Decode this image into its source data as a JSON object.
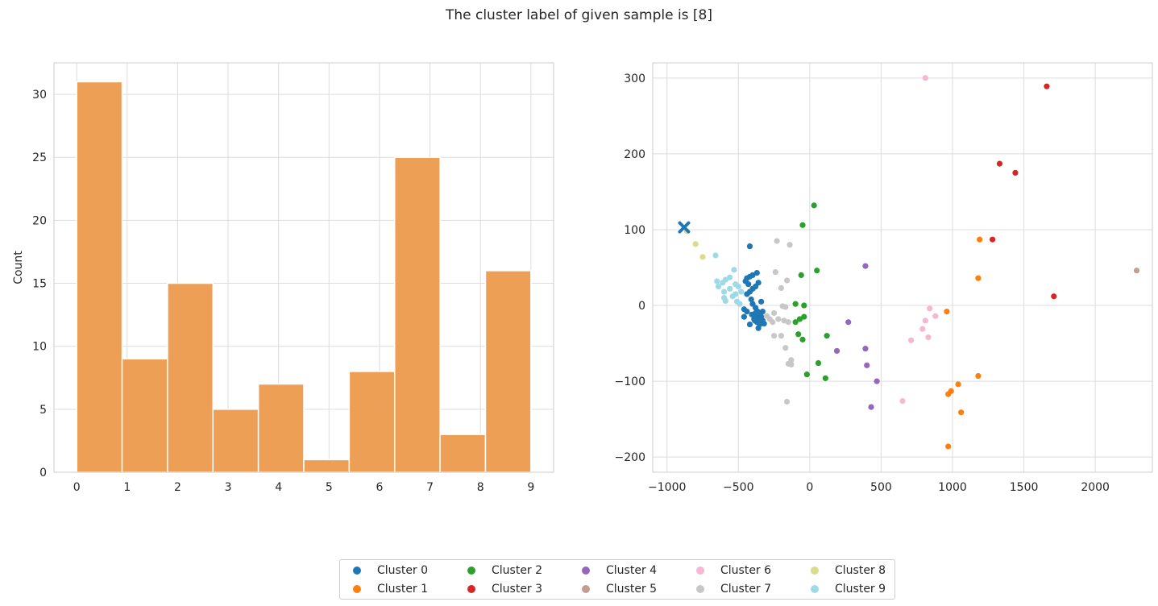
{
  "figure": {
    "title": "The cluster label of given sample is [8]"
  },
  "chart_data": [
    {
      "type": "bar",
      "subtype": "histogram",
      "title": "",
      "xlabel": "",
      "ylabel": "Count",
      "color": "#ed9a4d",
      "bins": [
        {
          "start": 0.0,
          "end": 0.9,
          "count": 31
        },
        {
          "start": 0.9,
          "end": 1.8,
          "count": 9
        },
        {
          "start": 1.8,
          "end": 2.7,
          "count": 15
        },
        {
          "start": 2.7,
          "end": 3.6,
          "count": 5
        },
        {
          "start": 3.6,
          "end": 4.5,
          "count": 7
        },
        {
          "start": 4.5,
          "end": 5.4,
          "count": 1
        },
        {
          "start": 5.4,
          "end": 6.3,
          "count": 8
        },
        {
          "start": 6.3,
          "end": 7.2,
          "count": 25
        },
        {
          "start": 7.2,
          "end": 8.1,
          "count": 3
        },
        {
          "start": 8.1,
          "end": 9.0,
          "count": 16
        }
      ],
      "xlim": [
        -0.45,
        9.45
      ],
      "ylim": [
        0,
        32.5
      ],
      "xticks": [
        0,
        1,
        2,
        3,
        4,
        5,
        6,
        7,
        8,
        9
      ],
      "yticks": [
        0,
        5,
        10,
        15,
        20,
        25,
        30
      ],
      "grid": true
    },
    {
      "type": "scatter",
      "title": "",
      "xlabel": "",
      "ylabel": "",
      "xlim": [
        -1100,
        2400
      ],
      "ylim": [
        -220,
        320
      ],
      "xticks": [
        -1000,
        -500,
        0,
        500,
        1000,
        1500,
        2000
      ],
      "xtick_labels": [
        "−1000",
        "−500",
        "0",
        "500",
        "1000",
        "1500",
        "2000"
      ],
      "yticks": [
        -200,
        -100,
        0,
        100,
        200,
        300
      ],
      "ytick_labels": [
        "−200",
        "−100",
        "0",
        "100",
        "200",
        "300"
      ],
      "grid": true,
      "series": [
        {
          "name": "Cluster 0",
          "color": "#1f77b4",
          "points": [
            [
              -420,
              78
            ],
            [
              -440,
              36
            ],
            [
              -420,
              38
            ],
            [
              -400,
              40
            ],
            [
              -370,
              43
            ],
            [
              -450,
              32
            ],
            [
              -430,
              28
            ],
            [
              -400,
              22
            ],
            [
              -380,
              25
            ],
            [
              -360,
              30
            ],
            [
              -440,
              15
            ],
            [
              -420,
              18
            ],
            [
              -410,
              8
            ],
            [
              -400,
              2
            ],
            [
              -340,
              5
            ],
            [
              -460,
              -5
            ],
            [
              -440,
              -8
            ],
            [
              -380,
              -10
            ],
            [
              -360,
              -12
            ],
            [
              -340,
              -15
            ],
            [
              -390,
              -18
            ],
            [
              -370,
              -22
            ],
            [
              -350,
              -25
            ],
            [
              -330,
              -20
            ],
            [
              -360,
              -30
            ],
            [
              -420,
              -25
            ],
            [
              -320,
              -24
            ],
            [
              -460,
              -15
            ],
            [
              -355,
              -17
            ],
            [
              -375,
              -16
            ],
            [
              -345,
              -13
            ],
            [
              -365,
              -8
            ],
            [
              -330,
              -8
            ],
            [
              -380,
              -3
            ],
            [
              -405,
              -12
            ],
            [
              -385,
              -20
            ]
          ]
        },
        {
          "name": "Cluster 1",
          "color": "#ff7f0e",
          "points": [
            [
              1190,
              87
            ],
            [
              1180,
              36
            ],
            [
              960,
              -8
            ],
            [
              1180,
              -93
            ],
            [
              1040,
              -104
            ],
            [
              990,
              -113
            ],
            [
              970,
              -117
            ],
            [
              1060,
              -141
            ],
            [
              970,
              -186
            ]
          ]
        },
        {
          "name": "Cluster 2",
          "color": "#2ca02c",
          "points": [
            [
              30,
              132
            ],
            [
              -50,
              106
            ],
            [
              50,
              46
            ],
            [
              -60,
              40
            ],
            [
              -100,
              2
            ],
            [
              -40,
              0
            ],
            [
              -40,
              -15
            ],
            [
              -70,
              -18
            ],
            [
              -100,
              -22
            ],
            [
              -80,
              -38
            ],
            [
              -50,
              -45
            ],
            [
              120,
              -40
            ],
            [
              60,
              -76
            ],
            [
              -20,
              -91
            ],
            [
              110,
              -96
            ]
          ]
        },
        {
          "name": "Cluster 3",
          "color": "#d62728",
          "points": [
            [
              1660,
              289
            ],
            [
              1330,
              187
            ],
            [
              1440,
              175
            ],
            [
              1280,
              87
            ],
            [
              1710,
              12
            ]
          ]
        },
        {
          "name": "Cluster 4",
          "color": "#9467bd",
          "points": [
            [
              390,
              52
            ],
            [
              270,
              -22
            ],
            [
              190,
              -60
            ],
            [
              390,
              -57
            ],
            [
              400,
              -79
            ],
            [
              470,
              -100
            ],
            [
              430,
              -134
            ]
          ]
        },
        {
          "name": "Cluster 5",
          "color": "#c49c94",
          "points": [
            [
              2290,
              46
            ]
          ]
        },
        {
          "name": "Cluster 6",
          "color": "#f7b6d2",
          "points": [
            [
              810,
              300
            ],
            [
              840,
              -4
            ],
            [
              880,
              -14
            ],
            [
              810,
              -20
            ],
            [
              790,
              -31
            ],
            [
              830,
              -42
            ],
            [
              710,
              -46
            ],
            [
              650,
              -126
            ]
          ]
        },
        {
          "name": "Cluster 7",
          "color": "#c7c7c7",
          "points": [
            [
              -230,
              85
            ],
            [
              -140,
              80
            ],
            [
              -240,
              44
            ],
            [
              -160,
              33
            ],
            [
              -200,
              23
            ],
            [
              -190,
              -1
            ],
            [
              -170,
              -2
            ],
            [
              -250,
              -10
            ],
            [
              -300,
              -14
            ],
            [
              -220,
              -18
            ],
            [
              -180,
              -20
            ],
            [
              -150,
              -22
            ],
            [
              -280,
              -18
            ],
            [
              -260,
              -22
            ],
            [
              -200,
              -40
            ],
            [
              -250,
              -40
            ],
            [
              -170,
              -56
            ],
            [
              -130,
              -72
            ],
            [
              -150,
              -77
            ],
            [
              -130,
              -78
            ],
            [
              -160,
              -127
            ]
          ]
        },
        {
          "name": "Cluster 8",
          "color": "#dbdb8d",
          "points": [
            [
              -860,
              98
            ],
            [
              -800,
              81
            ],
            [
              -750,
              64
            ]
          ]
        },
        {
          "name": "Cluster 9",
          "color": "#9edae5",
          "points": [
            [
              -660,
              66
            ],
            [
              -530,
              47
            ],
            [
              -590,
              34
            ],
            [
              -560,
              37
            ],
            [
              -650,
              32
            ],
            [
              -610,
              30
            ],
            [
              -520,
              28
            ],
            [
              -500,
              25
            ],
            [
              -560,
              22
            ],
            [
              -600,
              18
            ],
            [
              -640,
              25
            ],
            [
              -480,
              18
            ],
            [
              -520,
              15
            ],
            [
              -540,
              12
            ],
            [
              -600,
              10
            ],
            [
              -590,
              6
            ],
            [
              -510,
              5
            ],
            [
              -490,
              2
            ]
          ]
        }
      ],
      "given_sample": {
        "marker": "x",
        "color": "#1f77b4",
        "point": [
          -880,
          103
        ]
      }
    }
  ],
  "legend": {
    "entries": [
      {
        "label": "Cluster 0",
        "color": "#1f77b4"
      },
      {
        "label": "Cluster 1",
        "color": "#ff7f0e"
      },
      {
        "label": "Cluster 2",
        "color": "#2ca02c"
      },
      {
        "label": "Cluster 3",
        "color": "#d62728"
      },
      {
        "label": "Cluster 4",
        "color": "#9467bd"
      },
      {
        "label": "Cluster 5",
        "color": "#c49c94"
      },
      {
        "label": "Cluster 6",
        "color": "#f7b6d2"
      },
      {
        "label": "Cluster 7",
        "color": "#c7c7c7"
      },
      {
        "label": "Cluster 8",
        "color": "#dbdb8d"
      },
      {
        "label": "Cluster 9",
        "color": "#9edae5"
      }
    ]
  }
}
